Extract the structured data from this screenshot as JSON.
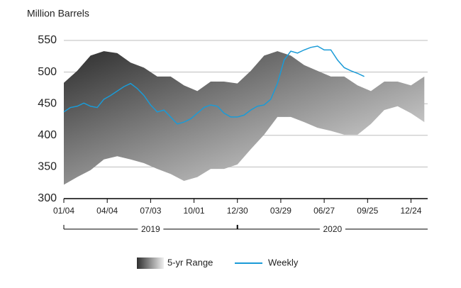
{
  "chart_data": {
    "type": "range-line",
    "y_label": "Million Barrels",
    "xlim": [
      0,
      109
    ],
    "xticks": [
      {
        "value": 0,
        "label": "01/04"
      },
      {
        "value": 13,
        "label": "04/04"
      },
      {
        "value": 26,
        "label": "07/03"
      },
      {
        "value": 39,
        "label": "10/01"
      },
      {
        "value": 52,
        "label": "12/30"
      },
      {
        "value": 65,
        "label": "03/29"
      },
      {
        "value": 78,
        "label": "06/27"
      },
      {
        "value": 91,
        "label": "09/25"
      },
      {
        "value": 104,
        "label": "12/24"
      }
    ],
    "x_groups": [
      {
        "label": "2019",
        "range": [
          0,
          52
        ]
      },
      {
        "label": "2020",
        "range": [
          52,
          109
        ]
      }
    ],
    "ylim": [
      300,
      550
    ],
    "yticks": [
      300,
      350,
      400,
      450,
      500,
      550
    ],
    "grid": true,
    "series": [
      {
        "name": "5-yr Range",
        "type": "range",
        "colors": [
          "#2e2e2e",
          "#f0f0f0"
        ],
        "x": [
          0,
          4,
          8,
          12,
          16,
          20,
          24,
          28,
          32,
          36,
          40,
          44,
          48,
          52,
          56,
          60,
          64,
          68,
          72,
          76,
          80,
          84,
          88,
          92,
          96,
          100,
          104,
          108
        ],
        "high": [
          483,
          502,
          526,
          533,
          530,
          515,
          507,
          493,
          493,
          479,
          470,
          485,
          485,
          482,
          502,
          526,
          533,
          526,
          511,
          502,
          493,
          493,
          479,
          470,
          485,
          485,
          479,
          493
        ],
        "low": [
          322,
          334,
          345,
          362,
          367,
          362,
          356,
          347,
          339,
          328,
          334,
          347,
          347,
          354,
          378,
          401,
          429,
          429,
          421,
          412,
          407,
          401,
          401,
          418,
          440,
          446,
          435,
          421
        ]
      },
      {
        "name": "Weekly",
        "type": "line",
        "color": "#1a9bd7",
        "x": [
          0,
          2,
          4,
          6,
          8,
          10,
          12,
          14,
          16,
          18,
          20,
          22,
          24,
          26,
          28,
          30,
          32,
          34,
          36,
          38,
          40,
          42,
          44,
          46,
          48,
          50,
          52,
          54,
          56,
          58,
          60,
          62,
          64,
          66,
          68,
          70,
          72,
          74,
          76,
          78,
          80,
          82,
          84,
          86,
          88,
          90
        ],
        "values": [
          437,
          444,
          446,
          451,
          446,
          444,
          457,
          463,
          470,
          477,
          482,
          474,
          463,
          448,
          437,
          440,
          429,
          418,
          421,
          426,
          435,
          444,
          448,
          446,
          435,
          429,
          429,
          432,
          440,
          446,
          448,
          457,
          482,
          519,
          533,
          530,
          535,
          539,
          541,
          535,
          535,
          519,
          507,
          502,
          498,
          493
        ]
      }
    ]
  }
}
